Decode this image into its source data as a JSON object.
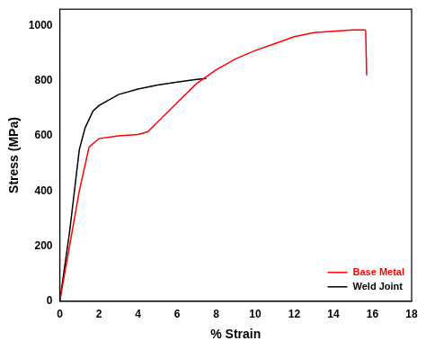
{
  "chart_data": {
    "type": "line",
    "x_label": "% Strain",
    "y_label": "Stress (MPa)",
    "xlim": [
      0,
      18
    ],
    "xticks": [
      0,
      2,
      4,
      6,
      8,
      10,
      12,
      14,
      16,
      18
    ],
    "ylim": [
      0,
      1060
    ],
    "yticks": [
      0,
      200,
      400,
      600,
      800,
      1000
    ],
    "legend": "lower right",
    "grid": false,
    "series": [
      {
        "name": "Base Metal",
        "color": "#ff0000",
        "x": [
          0,
          0.5,
          1,
          1.5,
          2,
          3,
          4,
          4.5,
          5,
          6,
          7,
          8,
          9,
          10,
          11,
          12,
          13,
          14,
          15,
          15.6,
          15.65,
          15.7
        ],
        "values": [
          0,
          200,
          400,
          560,
          590,
          600,
          605,
          615,
          650,
          720,
          790,
          840,
          880,
          910,
          935,
          960,
          975,
          980,
          985,
          985,
          980,
          820
        ]
      },
      {
        "name": "Weld Joint",
        "color": "#000000",
        "x": [
          0,
          0.5,
          1,
          1.3,
          1.7,
          2,
          3,
          4,
          5,
          6,
          7,
          7.5
        ],
        "values": [
          0,
          250,
          550,
          630,
          690,
          710,
          750,
          770,
          785,
          795,
          805,
          808
        ]
      }
    ]
  }
}
